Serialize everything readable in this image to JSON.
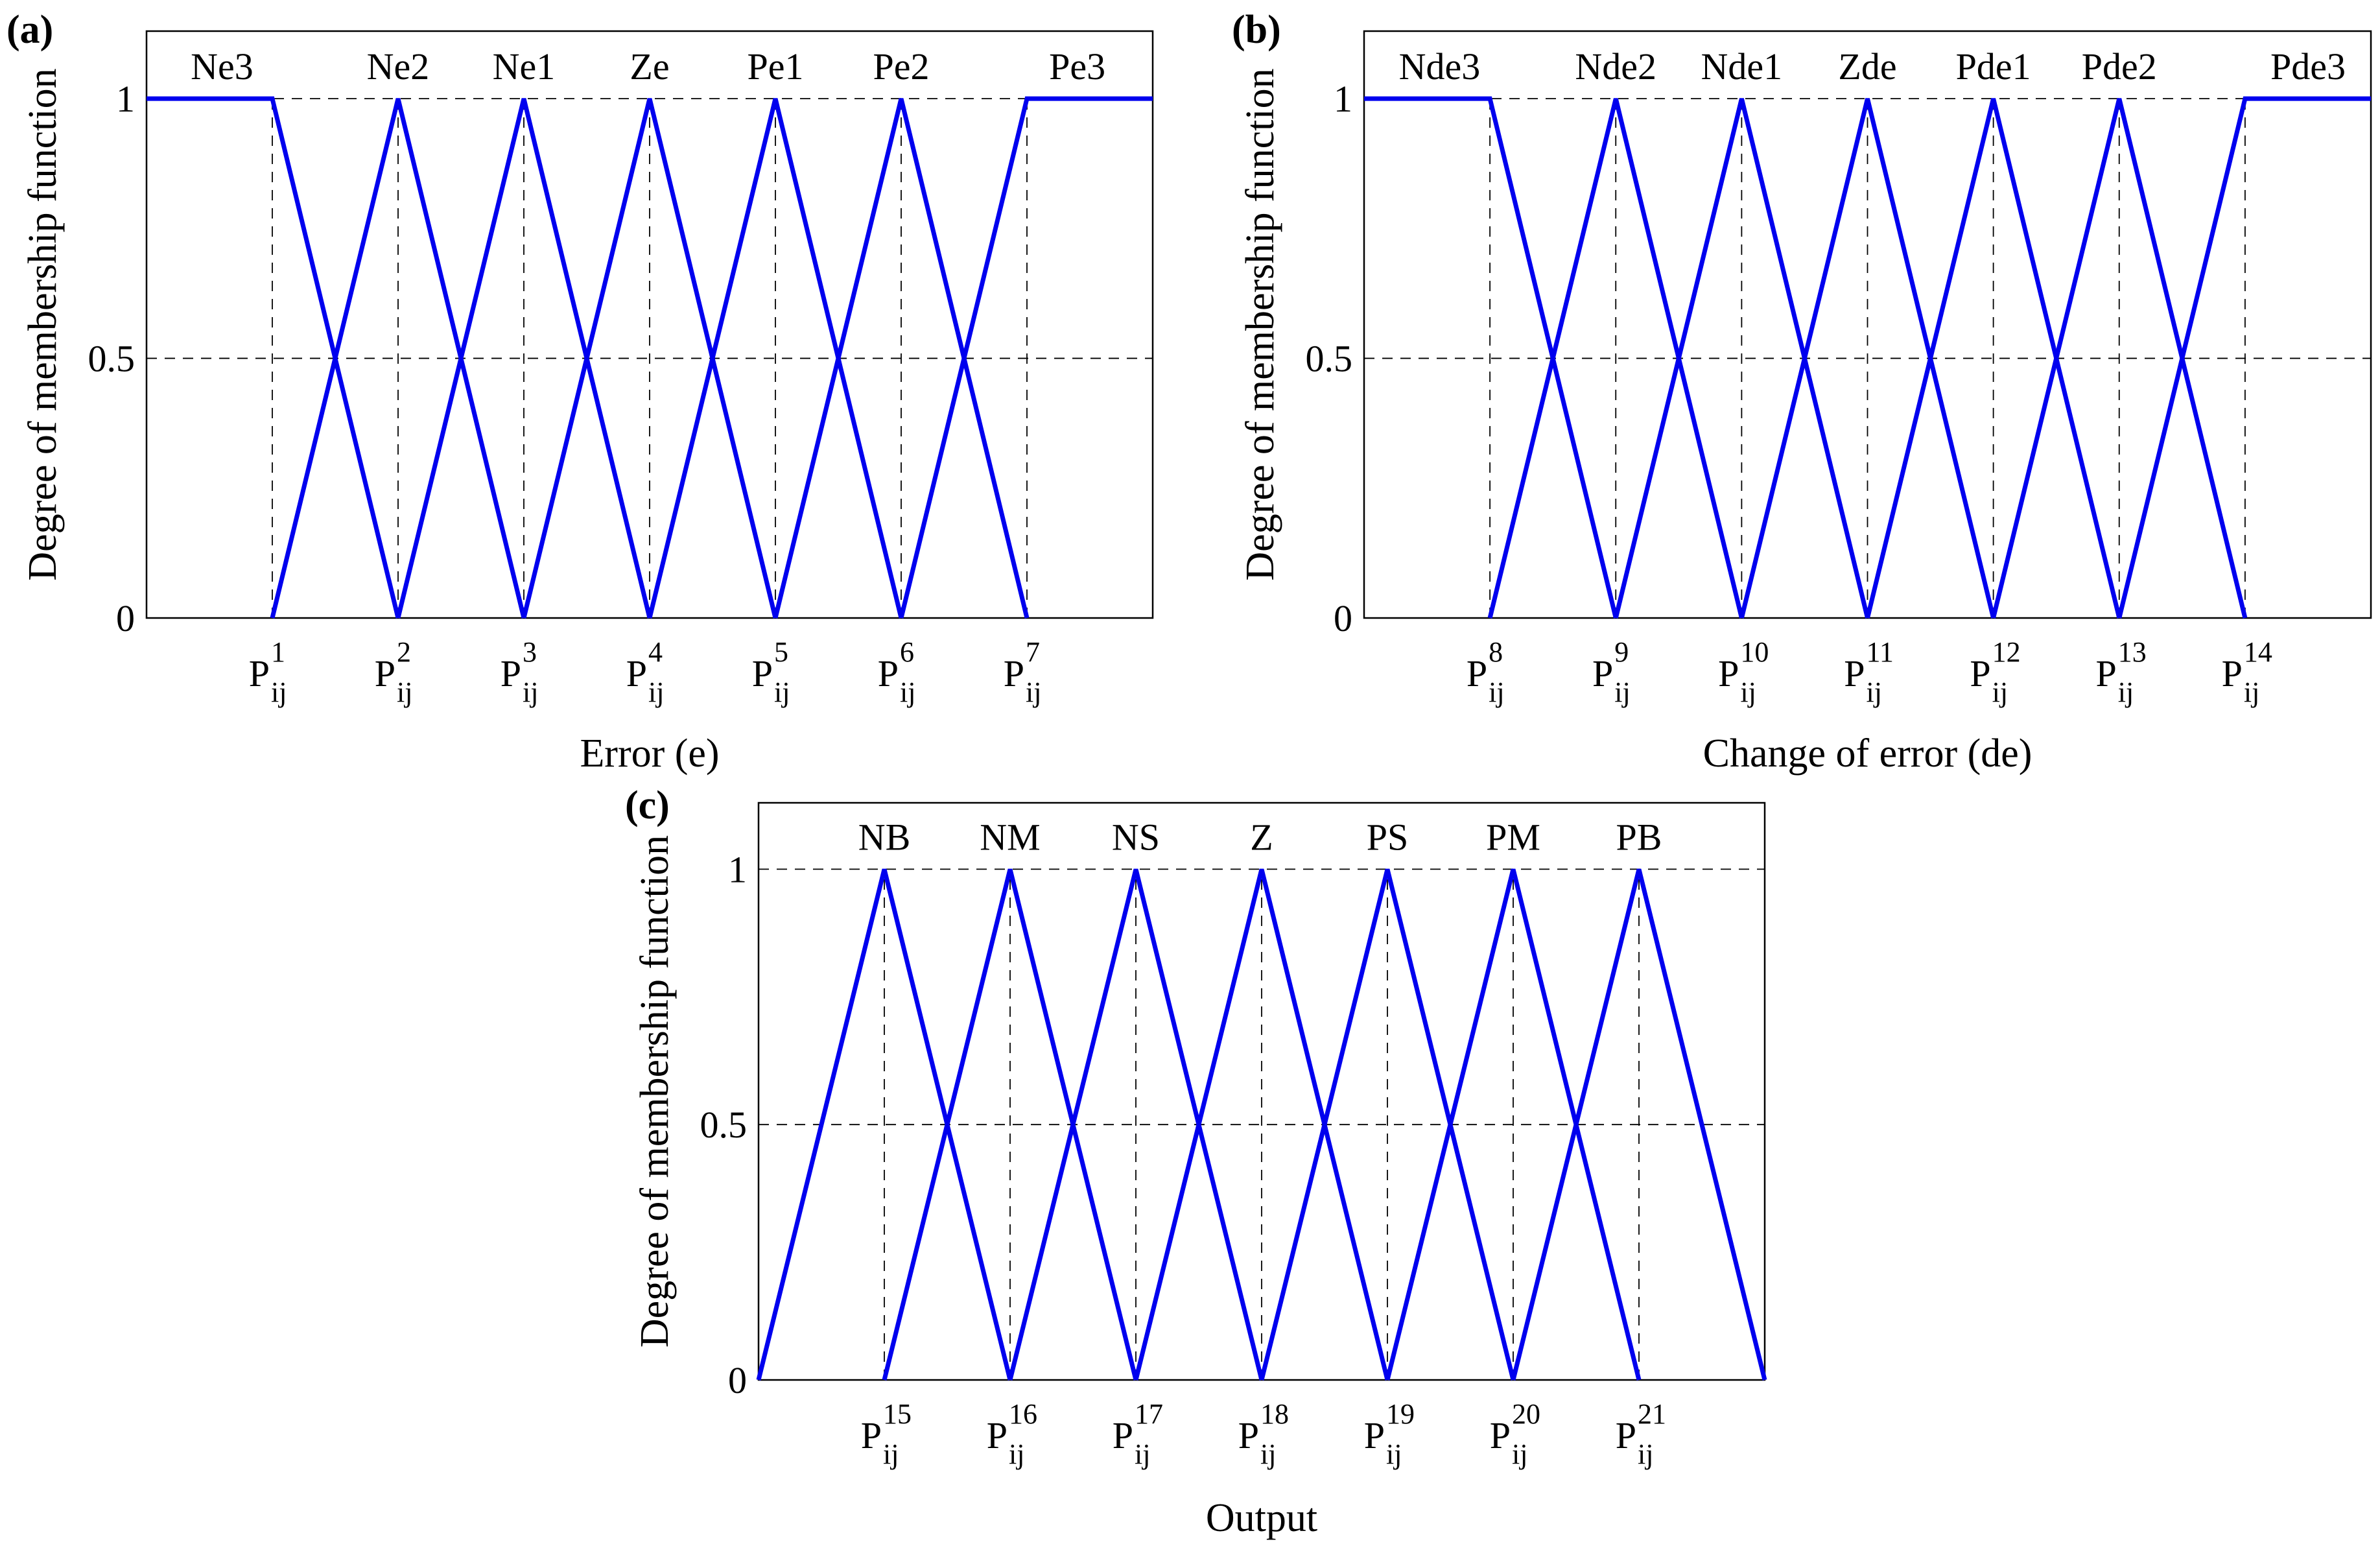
{
  "colors": {
    "membership_line": "#0000ee",
    "axes": "#000000"
  },
  "chart_data": [
    {
      "type": "line",
      "panel_label": "(a)",
      "xlabel": "Error (e)",
      "ylabel": "Degree of membership function",
      "yticks": [
        "0",
        "0.5",
        "1"
      ],
      "ylim": [
        0,
        1.13
      ],
      "xlim": [
        0,
        8
      ],
      "x_ticks": [
        {
          "x": 1,
          "label": "P",
          "sub": "ij",
          "sup": "1"
        },
        {
          "x": 2,
          "label": "P",
          "sub": "ij",
          "sup": "2"
        },
        {
          "x": 3,
          "label": "P",
          "sub": "ij",
          "sup": "3"
        },
        {
          "x": 4,
          "label": "P",
          "sub": "ij",
          "sup": "4"
        },
        {
          "x": 5,
          "label": "P",
          "sub": "ij",
          "sup": "5"
        },
        {
          "x": 6,
          "label": "P",
          "sub": "ij",
          "sup": "6"
        },
        {
          "x": 7,
          "label": "P",
          "sub": "ij",
          "sup": "7"
        }
      ],
      "grid": "dashed at y = 0.5 and y = 1 and at each P tick",
      "series": [
        {
          "name": "Ne3",
          "label_x": 0.6,
          "points": [
            [
              0,
              1
            ],
            [
              1,
              1
            ],
            [
              2,
              0
            ]
          ]
        },
        {
          "name": "Ne2",
          "label_x": 2,
          "points": [
            [
              1,
              0
            ],
            [
              2,
              1
            ],
            [
              3,
              0
            ]
          ]
        },
        {
          "name": "Ne1",
          "label_x": 3,
          "points": [
            [
              2,
              0
            ],
            [
              3,
              1
            ],
            [
              4,
              0
            ]
          ]
        },
        {
          "name": "Ze",
          "label_x": 4,
          "points": [
            [
              3,
              0
            ],
            [
              4,
              1
            ],
            [
              5,
              0
            ]
          ]
        },
        {
          "name": "Pe1",
          "label_x": 5,
          "points": [
            [
              4,
              0
            ],
            [
              5,
              1
            ],
            [
              6,
              0
            ]
          ]
        },
        {
          "name": "Pe2",
          "label_x": 6,
          "points": [
            [
              5,
              0
            ],
            [
              6,
              1
            ],
            [
              7,
              0
            ]
          ]
        },
        {
          "name": "Pe3",
          "label_x": 7.4,
          "points": [
            [
              6,
              0
            ],
            [
              7,
              1
            ],
            [
              8,
              1
            ]
          ]
        }
      ]
    },
    {
      "type": "line",
      "panel_label": "(b)",
      "xlabel": "Change of error (de)",
      "ylabel": "Degree of membership function",
      "yticks": [
        "0",
        "0.5",
        "1"
      ],
      "ylim": [
        0,
        1.13
      ],
      "xlim": [
        0,
        8
      ],
      "x_ticks": [
        {
          "x": 1,
          "label": "P",
          "sub": "ij",
          "sup": "8"
        },
        {
          "x": 2,
          "label": "P",
          "sub": "ij",
          "sup": "9"
        },
        {
          "x": 3,
          "label": "P",
          "sub": "ij",
          "sup": "10"
        },
        {
          "x": 4,
          "label": "P",
          "sub": "ij",
          "sup": "11"
        },
        {
          "x": 5,
          "label": "P",
          "sub": "ij",
          "sup": "12"
        },
        {
          "x": 6,
          "label": "P",
          "sub": "ij",
          "sup": "13"
        },
        {
          "x": 7,
          "label": "P",
          "sub": "ij",
          "sup": "14"
        }
      ],
      "grid": "dashed at y = 0.5 and y = 1 and at each P tick",
      "series": [
        {
          "name": "Nde3",
          "label_x": 0.6,
          "points": [
            [
              0,
              1
            ],
            [
              1,
              1
            ],
            [
              2,
              0
            ]
          ]
        },
        {
          "name": "Nde2",
          "label_x": 2,
          "points": [
            [
              1,
              0
            ],
            [
              2,
              1
            ],
            [
              3,
              0
            ]
          ]
        },
        {
          "name": "Nde1",
          "label_x": 3,
          "points": [
            [
              2,
              0
            ],
            [
              3,
              1
            ],
            [
              4,
              0
            ]
          ]
        },
        {
          "name": "Zde",
          "label_x": 4,
          "points": [
            [
              3,
              0
            ],
            [
              4,
              1
            ],
            [
              5,
              0
            ]
          ]
        },
        {
          "name": "Pde1",
          "label_x": 5,
          "points": [
            [
              4,
              0
            ],
            [
              5,
              1
            ],
            [
              6,
              0
            ]
          ]
        },
        {
          "name": "Pde2",
          "label_x": 6,
          "points": [
            [
              5,
              0
            ],
            [
              6,
              1
            ],
            [
              7,
              0
            ]
          ]
        },
        {
          "name": "Pde3",
          "label_x": 7.5,
          "points": [
            [
              6,
              0
            ],
            [
              7,
              1
            ],
            [
              8,
              1
            ]
          ]
        }
      ]
    },
    {
      "type": "line",
      "panel_label": "(c)",
      "xlabel": "Output",
      "ylabel": "Degree of membership function",
      "yticks": [
        "0",
        "0.5",
        "1"
      ],
      "ylim": [
        0,
        1.13
      ],
      "xlim": [
        0,
        8
      ],
      "x_ticks": [
        {
          "x": 1,
          "label": "P",
          "sub": "ij",
          "sup": "15"
        },
        {
          "x": 2,
          "label": "P",
          "sub": "ij",
          "sup": "16"
        },
        {
          "x": 3,
          "label": "P",
          "sub": "ij",
          "sup": "17"
        },
        {
          "x": 4,
          "label": "P",
          "sub": "ij",
          "sup": "18"
        },
        {
          "x": 5,
          "label": "P",
          "sub": "ij",
          "sup": "19"
        },
        {
          "x": 6,
          "label": "P",
          "sub": "ij",
          "sup": "20"
        },
        {
          "x": 7,
          "label": "P",
          "sub": "ij",
          "sup": "21"
        }
      ],
      "grid": "dashed at y = 0.5 and y = 1 and at each P tick",
      "series": [
        {
          "name": "NB",
          "label_x": 1,
          "points": [
            [
              0,
              0
            ],
            [
              1,
              1
            ],
            [
              2,
              0
            ]
          ]
        },
        {
          "name": "NM",
          "label_x": 2,
          "points": [
            [
              1,
              0
            ],
            [
              2,
              1
            ],
            [
              3,
              0
            ]
          ]
        },
        {
          "name": "NS",
          "label_x": 3,
          "points": [
            [
              2,
              0
            ],
            [
              3,
              1
            ],
            [
              4,
              0
            ]
          ]
        },
        {
          "name": "Z",
          "label_x": 4,
          "points": [
            [
              3,
              0
            ],
            [
              4,
              1
            ],
            [
              5,
              0
            ]
          ]
        },
        {
          "name": "PS",
          "label_x": 5,
          "points": [
            [
              4,
              0
            ],
            [
              5,
              1
            ],
            [
              6,
              0
            ]
          ]
        },
        {
          "name": "PM",
          "label_x": 6,
          "points": [
            [
              5,
              0
            ],
            [
              6,
              1
            ],
            [
              7,
              0
            ]
          ]
        },
        {
          "name": "PB",
          "label_x": 7,
          "points": [
            [
              6,
              0
            ],
            [
              7,
              1
            ],
            [
              8,
              0
            ]
          ]
        }
      ]
    }
  ]
}
